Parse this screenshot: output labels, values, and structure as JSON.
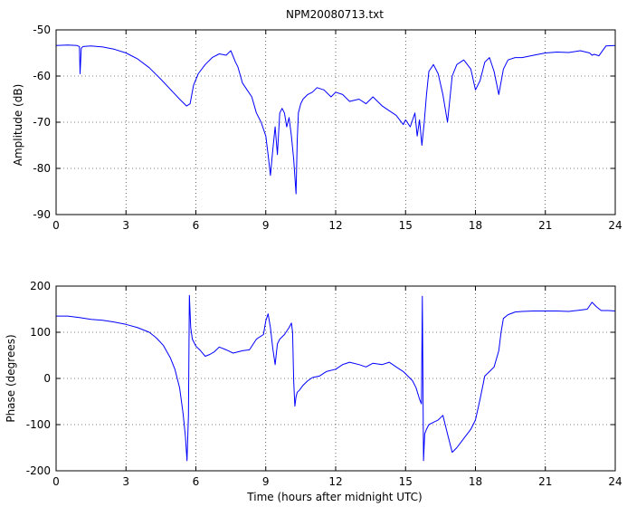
{
  "figure_title": "NPM20080713.txt",
  "chart_data": [
    {
      "type": "line",
      "title": "NPM20080713.txt",
      "xlabel": "",
      "ylabel": "Amplitude (dB)",
      "xlim": [
        0,
        24
      ],
      "ylim": [
        -90,
        -50
      ],
      "xticks": [
        0,
        3,
        6,
        9,
        12,
        15,
        18,
        21,
        24
      ],
      "yticks": [
        -90,
        -80,
        -70,
        -60,
        -50
      ],
      "grid": true,
      "line_color": "#0000ff",
      "series": [
        {
          "x": [
            0,
            0.5,
            0.9,
            1.0,
            1.03,
            1.08,
            1.15,
            1.5,
            2.0,
            2.5,
            3.0,
            3.5,
            4.0,
            4.5,
            5.0,
            5.3,
            5.6,
            5.75,
            5.9,
            6.1,
            6.4,
            6.7,
            7.0,
            7.3,
            7.5,
            7.7,
            7.8,
            8.0,
            8.2,
            8.4,
            8.6,
            8.8,
            9.0,
            9.1,
            9.2,
            9.3,
            9.4,
            9.5,
            9.6,
            9.7,
            9.8,
            9.9,
            10.0,
            10.1,
            10.2,
            10.3,
            10.35,
            10.4,
            10.5,
            10.6,
            10.8,
            11.0,
            11.2,
            11.5,
            11.8,
            12.0,
            12.3,
            12.6,
            13.0,
            13.3,
            13.6,
            14.0,
            14.3,
            14.6,
            14.9,
            15.0,
            15.2,
            15.4,
            15.5,
            15.6,
            15.7,
            15.8,
            15.9,
            16.0,
            16.2,
            16.4,
            16.6,
            16.8,
            16.9,
            17.0,
            17.2,
            17.5,
            17.8,
            18.0,
            18.2,
            18.4,
            18.6,
            18.8,
            19.0,
            19.2,
            19.4,
            19.7,
            20.0,
            20.5,
            21.0,
            21.5,
            22.0,
            22.5,
            22.9,
            23.0,
            23.1,
            23.3,
            23.6,
            24.0
          ],
          "y": [
            -53.4,
            -53.3,
            -53.4,
            -53.6,
            -59.5,
            -54.0,
            -53.6,
            -53.5,
            -53.7,
            -54.2,
            -55.0,
            -56.3,
            -58.2,
            -60.7,
            -63.4,
            -65.0,
            -66.5,
            -66.0,
            -62.0,
            -59.5,
            -57.5,
            -56.0,
            -55.2,
            -55.5,
            -54.5,
            -57.0,
            -58.0,
            -61.5,
            -63.0,
            -64.5,
            -68.0,
            -70.0,
            -73.0,
            -77.0,
            -81.5,
            -76.0,
            -71.0,
            -77.0,
            -68.0,
            -67.0,
            -68.0,
            -71.0,
            -69.0,
            -73.0,
            -78.0,
            -85.5,
            -74.0,
            -68.0,
            -66.0,
            -65.0,
            -64.0,
            -63.5,
            -62.5,
            -63.0,
            -64.5,
            -63.5,
            -64.0,
            -65.5,
            -65.0,
            -66.0,
            -64.5,
            -66.5,
            -67.5,
            -68.5,
            -70.5,
            -69.5,
            -71.0,
            -68.0,
            -73.0,
            -69.5,
            -75.0,
            -70.0,
            -64.0,
            -59.0,
            -57.5,
            -59.5,
            -64.0,
            -70.0,
            -65.0,
            -60.0,
            -57.5,
            -56.5,
            -58.5,
            -63.0,
            -61.0,
            -57.0,
            -56.0,
            -59.0,
            -64.0,
            -58.5,
            -56.5,
            -56.0,
            -56.0,
            -55.5,
            -55.0,
            -54.8,
            -54.9,
            -54.5,
            -55.0,
            -55.5,
            -55.3,
            -55.6,
            -53.5,
            -53.4
          ]
        }
      ]
    },
    {
      "type": "line",
      "title": "",
      "xlabel": "Time (hours after midnight UTC)",
      "ylabel": "Phase (degrees)",
      "xlim": [
        0,
        24
      ],
      "ylim": [
        -200,
        200
      ],
      "xticks": [
        0,
        3,
        6,
        9,
        12,
        15,
        18,
        21,
        24
      ],
      "yticks": [
        -200,
        -100,
        0,
        100,
        200
      ],
      "grid": true,
      "line_color": "#0000ff",
      "series": [
        {
          "x": [
            0,
            0.5,
            1.0,
            1.5,
            2.0,
            2.5,
            3.0,
            3.5,
            4.0,
            4.3,
            4.6,
            4.9,
            5.1,
            5.3,
            5.45,
            5.55,
            5.62,
            5.68,
            5.72,
            5.78,
            5.85,
            6.0,
            6.2,
            6.4,
            6.6,
            6.8,
            7.0,
            7.3,
            7.6,
            8.0,
            8.3,
            8.6,
            8.9,
            9.0,
            9.1,
            9.2,
            9.3,
            9.4,
            9.5,
            9.6,
            9.8,
            10.0,
            10.1,
            10.15,
            10.2,
            10.25,
            10.3,
            10.35,
            10.45,
            10.6,
            10.8,
            11.0,
            11.3,
            11.6,
            12.0,
            12.3,
            12.6,
            13.0,
            13.3,
            13.6,
            14.0,
            14.3,
            14.6,
            14.9,
            15.1,
            15.3,
            15.45,
            15.6,
            15.68,
            15.72,
            15.77,
            15.82,
            15.9,
            16.0,
            16.2,
            16.4,
            16.6,
            16.8,
            17.0,
            17.2,
            17.5,
            17.8,
            18.0,
            18.2,
            18.4,
            18.6,
            18.8,
            19.0,
            19.1,
            19.2,
            19.4,
            19.7,
            20.0,
            20.5,
            21.0,
            21.5,
            22.0,
            22.5,
            22.8,
            23.0,
            23.2,
            23.4,
            23.7,
            24.0
          ],
          "y": [
            135,
            135,
            132,
            128,
            126,
            122,
            117,
            110,
            100,
            88,
            72,
            45,
            20,
            -20,
            -75,
            -125,
            -178,
            -80,
            180,
            110,
            85,
            70,
            60,
            48,
            52,
            58,
            68,
            62,
            55,
            60,
            62,
            85,
            95,
            125,
            140,
            110,
            65,
            30,
            75,
            85,
            95,
            110,
            120,
            100,
            -5,
            -60,
            -40,
            -30,
            -25,
            -15,
            -5,
            2,
            5,
            15,
            20,
            30,
            35,
            30,
            25,
            33,
            30,
            35,
            25,
            15,
            5,
            -5,
            -20,
            -45,
            -55,
            178,
            -178,
            -120,
            -110,
            -100,
            -95,
            -90,
            -80,
            -120,
            -160,
            -150,
            -130,
            -110,
            -90,
            -45,
            5,
            15,
            25,
            60,
            100,
            130,
            138,
            144,
            145,
            146,
            146,
            146,
            145,
            148,
            150,
            165,
            155,
            147,
            147,
            146
          ]
        }
      ]
    }
  ]
}
